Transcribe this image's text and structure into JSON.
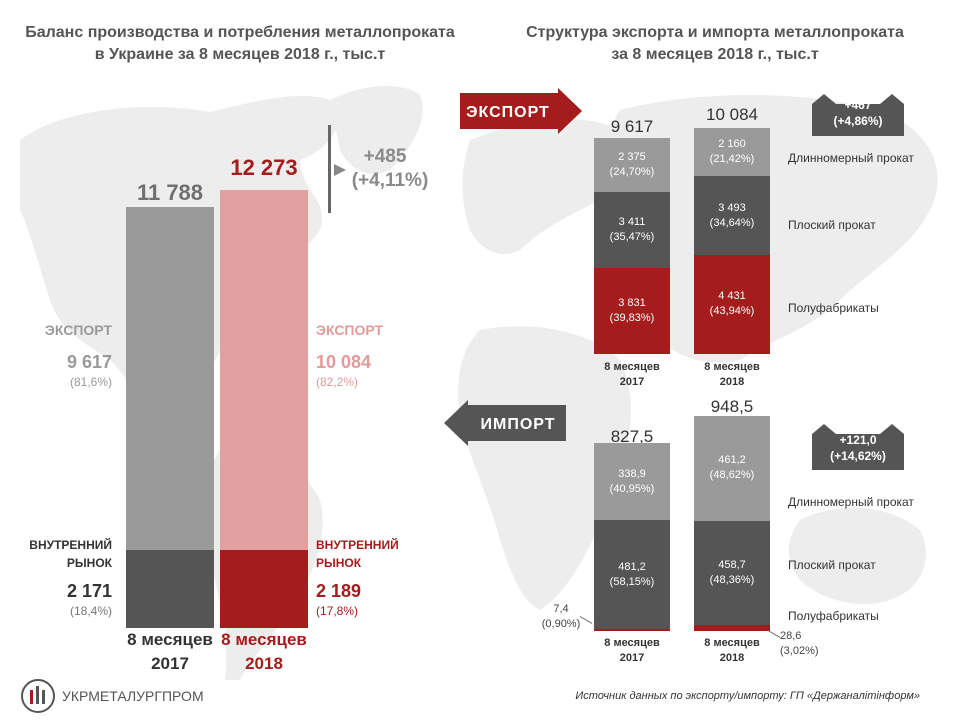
{
  "left_title": "Баланс производства и потребления металлопроката\nв Украине за 8 месяцев 2018 г., тыс.т",
  "right_title": "Структура экспорта и импорта металлопроката\nза 8 месяцев 2018 г., тыс.т",
  "export_arrow": "ЭКСПОРТ",
  "import_arrow": "ИМПОРТ",
  "logo_text": "УКРМЕТАЛУРГПРОМ",
  "source_note": "Источник данных по экспорту/импорту:  ГП «Держаналітінформ»",
  "colors": {
    "grey": "#9a9a9a",
    "dark": "#555555",
    "red": "#a51c1c",
    "pink": "#e3a0a0",
    "map": "#ececec"
  },
  "chart_data": [
    {
      "type": "bar",
      "title": "Баланс производства и потребления металлопроката в Украине за 8 месяцев 2018 г., тыс.т",
      "categories": [
        "8 месяцев 2017",
        "8 месяцев 2018"
      ],
      "category_labels": [
        [
          "8 месяцев",
          "2017"
        ],
        [
          "8 месяцев",
          "2018"
        ]
      ],
      "totals": [
        "11 788",
        "12 273"
      ],
      "total_values": [
        11788,
        12273
      ],
      "change": [
        "+485",
        "(+4,11%)"
      ],
      "series": [
        {
          "name": "ВНУТРЕННИЙ РЫНОК",
          "name_lines": [
            "ВНУТРЕННИЙ",
            "РЫНОК"
          ],
          "values": [
            2171,
            2189
          ],
          "labels": [
            "2 171",
            "2 189"
          ],
          "shares": [
            "(18,4%)",
            "(17,8%)"
          ]
        },
        {
          "name": "ЭКСПОРТ",
          "values": [
            9617,
            10084
          ],
          "labels": [
            "9 617",
            "10 084"
          ],
          "shares": [
            "(81,6%)",
            "(82,2%)"
          ]
        }
      ],
      "ylim": [
        0,
        13000
      ]
    },
    {
      "type": "bar",
      "title": "ЭКСПОРТ",
      "categories": [
        "8 месяцев 2017",
        "8 месяцев 2018"
      ],
      "category_labels": [
        [
          "8 месяцев",
          "2017"
        ],
        [
          "8 месяцев",
          "2018"
        ]
      ],
      "totals": [
        "9 617",
        "10 084"
      ],
      "total_values": [
        9617,
        10084
      ],
      "change": [
        "+467",
        "(+4,86%)"
      ],
      "series": [
        {
          "name": "Полуфабрикаты",
          "values": [
            3831,
            4431
          ],
          "labels": [
            "3 831",
            "4 431"
          ],
          "shares": [
            "(39,83%)",
            "(43,94%)"
          ]
        },
        {
          "name": "Плоский прокат",
          "values": [
            3411,
            3493
          ],
          "labels": [
            "3 411",
            "3 493"
          ],
          "shares": [
            "(35,47%)",
            "(34,64%)"
          ]
        },
        {
          "name": "Длинномерный прокат",
          "values": [
            2375,
            2160
          ],
          "labels": [
            "2 375",
            "2 160"
          ],
          "shares": [
            "(24,70%)",
            "(21,42%)"
          ]
        }
      ]
    },
    {
      "type": "bar",
      "title": "ИМПОРТ",
      "categories": [
        "8 месяцев 2017",
        "8 месяцев 2018"
      ],
      "category_labels": [
        [
          "8 месяцев",
          "2017"
        ],
        [
          "8 месяцев",
          "2018"
        ]
      ],
      "totals": [
        "827,5",
        "948,5"
      ],
      "total_values": [
        827.5,
        948.5
      ],
      "change": [
        "+121,0",
        "(+14,62%)"
      ],
      "series": [
        {
          "name": "Полуфабрикаты",
          "values": [
            7.4,
            28.6
          ],
          "labels": [
            "7,4",
            "28,6"
          ],
          "shares": [
            "(0,90%)",
            "(3,02%)"
          ]
        },
        {
          "name": "Плоский прокат",
          "values": [
            481.2,
            458.7
          ],
          "labels": [
            "481,2",
            "458,7"
          ],
          "shares": [
            "(58,15%)",
            "(48,36%)"
          ]
        },
        {
          "name": "Длинномерный прокат",
          "values": [
            338.9,
            461.2
          ],
          "labels": [
            "338,9",
            "461,2"
          ],
          "shares": [
            "(40,95%)",
            "(48,62%)"
          ]
        }
      ]
    }
  ]
}
